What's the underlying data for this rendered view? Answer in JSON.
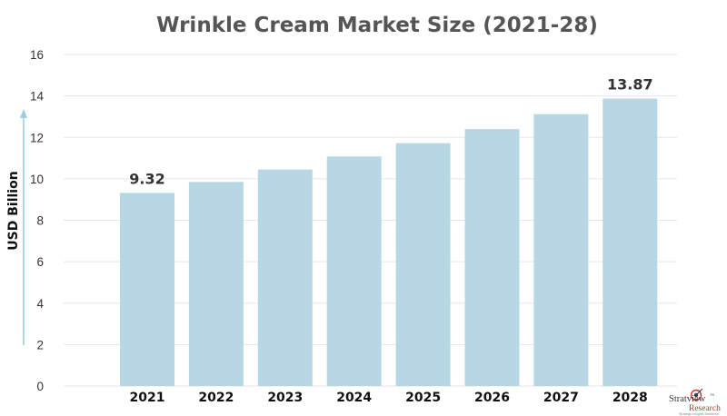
{
  "chart_data": {
    "type": "bar",
    "title": "Wrinkle Cream Market Size (2021-28)",
    "ylabel": "USD Billion",
    "xlabel": "",
    "categories": [
      "2021",
      "2022",
      "2023",
      "2024",
      "2025",
      "2026",
      "2027",
      "2028"
    ],
    "values": [
      9.32,
      9.85,
      10.45,
      11.08,
      11.72,
      12.4,
      13.12,
      13.87
    ],
    "data_labels": [
      {
        "index": 0,
        "text": "9.32"
      },
      {
        "index": 7,
        "text": "13.87"
      }
    ],
    "ylim": [
      0,
      16
    ],
    "yticks": [
      0,
      2,
      4,
      6,
      8,
      10,
      12,
      14,
      16
    ],
    "ytick_labels": [
      "0",
      "2",
      "4",
      "6",
      "8",
      "10",
      "12",
      "14",
      "16"
    ],
    "grid": true,
    "bar_color": "#b7d7e4",
    "arrow_color": "#9ccde0"
  },
  "logo": {
    "name": "Stratview",
    "trademark": "™",
    "line2": "Research",
    "tagline": "Strategic Insights Delivered"
  }
}
